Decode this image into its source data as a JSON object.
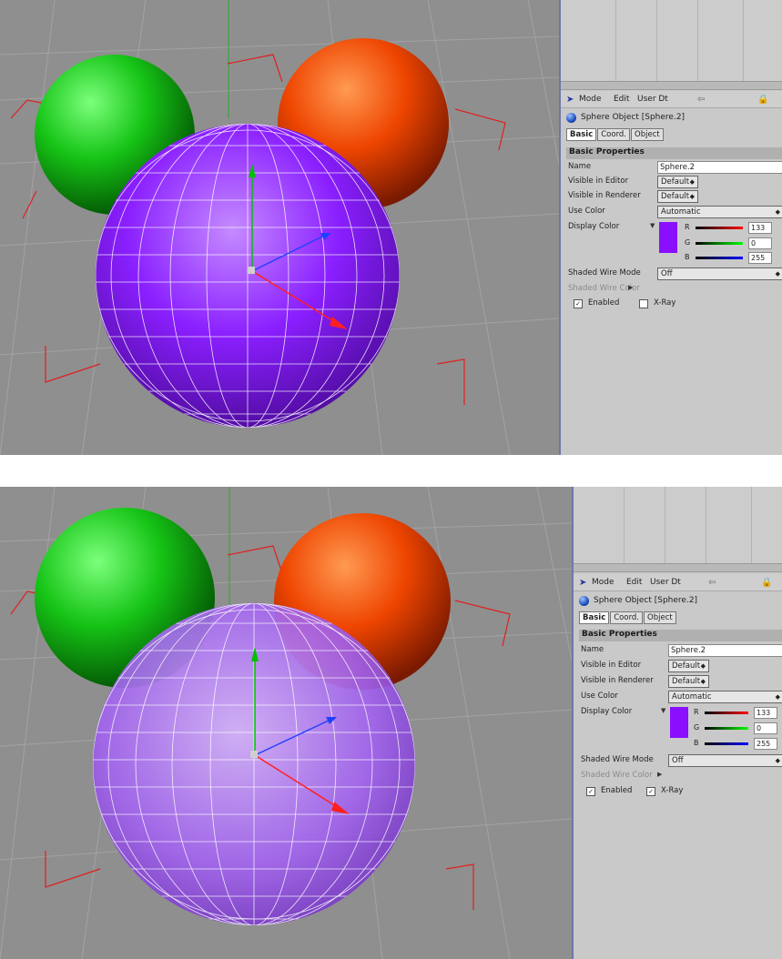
{
  "panels": [
    {
      "toolbar": {
        "mode": "Mode",
        "edit": "Edit",
        "user_data": "User Dt"
      },
      "object_title": "Sphere Object [Sphere.2]",
      "tabs": [
        "Basic",
        "Coord.",
        "Object"
      ],
      "section": "Basic Properties",
      "name_label": "Name",
      "name_value": "Sphere.2",
      "visible_editor_label": "Visible in Editor",
      "visible_editor_value": "Default",
      "visible_renderer_label": "Visible in Renderer",
      "visible_renderer_value": "Default",
      "use_color_label": "Use Color",
      "use_color_value": "Automatic",
      "display_color_label": "Display Color",
      "r_label": "R",
      "g_label": "G",
      "b_label": "B",
      "r_value": "133",
      "g_value": "0",
      "b_value": "255",
      "shaded_wire_mode_label": "Shaded Wire Mode",
      "shaded_wire_mode_value": "Off",
      "shaded_wire_color_label": "Shaded Wire Color",
      "enabled_label": "Enabled",
      "enabled_checked": true,
      "xray_label": "X-Ray",
      "xray_checked": false,
      "swatch_color": "#8a0fff"
    },
    {
      "toolbar": {
        "mode": "Mode",
        "edit": "Edit",
        "user_data": "User Dt"
      },
      "object_title": "Sphere Object [Sphere.2]",
      "tabs": [
        "Basic",
        "Coord.",
        "Object"
      ],
      "section": "Basic Properties",
      "name_label": "Name",
      "name_value": "Sphere.2",
      "visible_editor_label": "Visible in Editor",
      "visible_editor_value": "Default",
      "visible_renderer_label": "Visible in Renderer",
      "visible_renderer_value": "Default",
      "use_color_label": "Use Color",
      "use_color_value": "Automatic",
      "display_color_label": "Display Color",
      "r_label": "R",
      "g_label": "G",
      "b_label": "B",
      "r_value": "133",
      "g_value": "0",
      "b_value": "255",
      "shaded_wire_mode_label": "Shaded Wire Mode",
      "shaded_wire_mode_value": "Off",
      "shaded_wire_color_label": "Shaded Wire Color",
      "enabled_label": "Enabled",
      "enabled_checked": true,
      "xray_label": "X-Ray",
      "xray_checked": true,
      "swatch_color": "#8a0fff"
    }
  ],
  "icons": {
    "arrow": "pointer-arrow-icon",
    "back": "back-arrow-icon",
    "lock": "lock-icon",
    "object": "sphere-object-icon"
  },
  "colors": {
    "green_sphere": "#1fbf1f",
    "orange_sphere": "#f04a00",
    "purple_sphere": "#8a1fff",
    "viewport_bg": "#8f8f8f"
  }
}
